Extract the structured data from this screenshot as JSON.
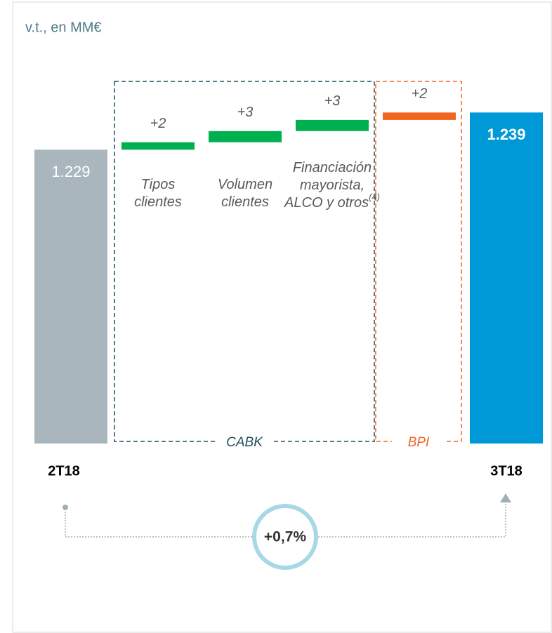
{
  "chart_data": {
    "type": "waterfall",
    "title": "v.t., en MM€",
    "categories": [
      "2T18",
      "Tipos clientes",
      "Volumen clientes",
      "Financiación mayorista, ALCO y otros",
      null,
      "3T18"
    ],
    "category_notes": [
      null,
      null,
      null,
      "(4)",
      null,
      null
    ],
    "kinds": [
      "total",
      "delta",
      "delta",
      "delta",
      "delta",
      "total"
    ],
    "values": [
      1229,
      2,
      3,
      3,
      2,
      1239
    ],
    "value_labels": [
      "1.229",
      "+2",
      "+3",
      "+3",
      "+2",
      "1.239"
    ],
    "colors": [
      "#a9b6bd",
      "#00b050",
      "#00b050",
      "#00b050",
      "#f26522",
      "#0099d8"
    ],
    "ylim": [
      1150,
      1245
    ],
    "groups": [
      {
        "name": "CABK",
        "from": 1,
        "to": 3,
        "color": "#1f4e5f"
      },
      {
        "name": "BPI",
        "from": 4,
        "to": 4,
        "color": "#f26522"
      }
    ],
    "change_label": "+0,7%"
  }
}
